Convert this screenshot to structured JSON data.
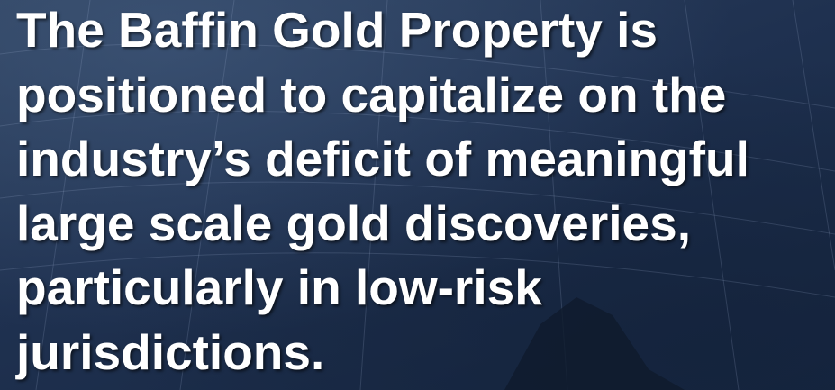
{
  "slide": {
    "lines": [
      "The Baffin Gold Property is",
      "positioned to capitalize on the",
      "industry’s deficit of meaningful",
      "large scale gold discoveries,",
      "particularly in low-risk",
      "jurisdictions."
    ]
  }
}
